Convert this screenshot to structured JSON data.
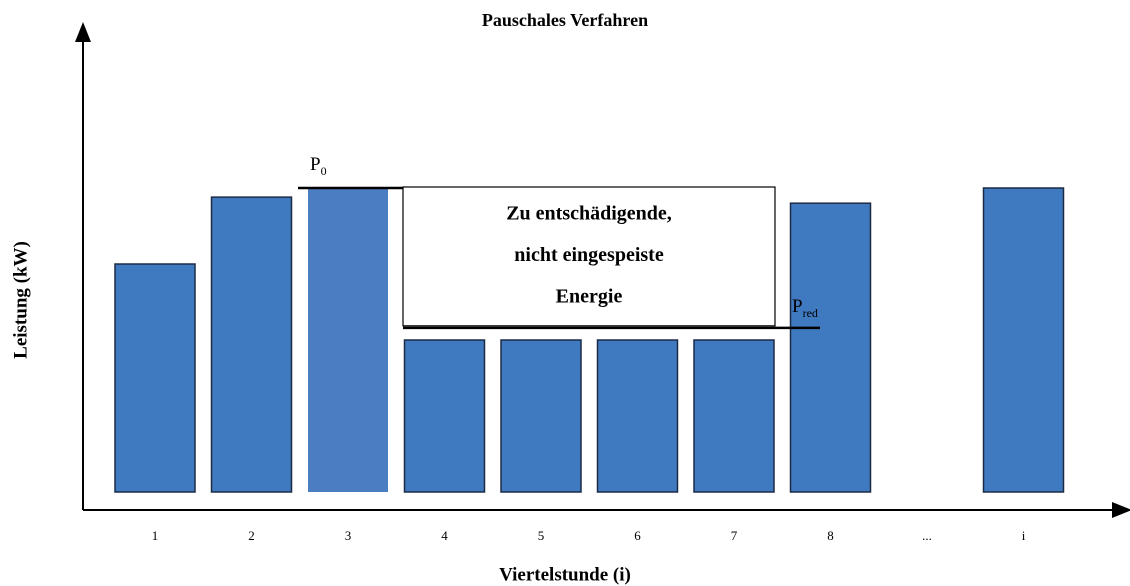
{
  "chart_data": {
    "type": "bar",
    "title": "Pauschales Verfahren",
    "xlabel": "Viertelstunde (i)",
    "ylabel": "Leistung (kW)",
    "categories": [
      "1",
      "2",
      "3",
      "4",
      "5",
      "6",
      "7",
      "8",
      "...",
      "i"
    ],
    "values": [
      75,
      97,
      100,
      50,
      50,
      50,
      50,
      95,
      null,
      100
    ],
    "colors": [
      "#3f79bf",
      "#3f79bf",
      "#4a7dc1",
      "#3f79bf",
      "#3f79bf",
      "#3f79bf",
      "#3f79bf",
      "#3f79bf",
      null,
      "#3f79bf"
    ],
    "ylim": [
      0,
      150
    ],
    "annotations": {
      "p0": {
        "text": "P",
        "sub": "0",
        "value": 100
      },
      "pred": {
        "text": "P",
        "sub": "red",
        "value": 54
      },
      "box": [
        "Zu entschädigende,",
        "nicht eingespeiste",
        "Energie"
      ]
    }
  }
}
